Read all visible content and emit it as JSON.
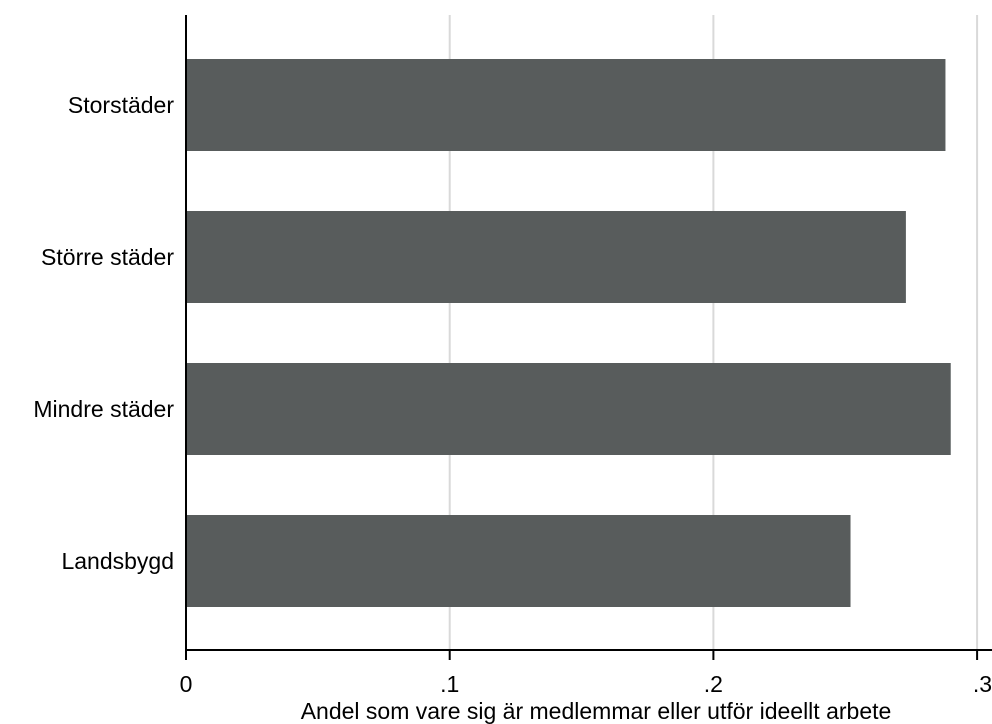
{
  "chart_data": {
    "type": "bar",
    "orientation": "horizontal",
    "categories": [
      "Storstäder",
      "Större städer",
      "Mindre städer",
      "Landsbygd"
    ],
    "values": [
      0.288,
      0.273,
      0.29,
      0.252
    ],
    "xlim": [
      0,
      0.3
    ],
    "xticks": [
      {
        "value": 0,
        "label": "0"
      },
      {
        "value": 0.1,
        "label": ".1"
      },
      {
        "value": 0.2,
        "label": ".2"
      },
      {
        "value": 0.3,
        "label": ".3"
      }
    ],
    "xlabel": "Andel som vare sig är medlemmar eller utför ideellt arbete",
    "ylabel": "",
    "title": "",
    "grid": "vertical",
    "colors": {
      "bar": "#585c5c",
      "grid": "#d9d9d9",
      "axis": "#000000",
      "background": "#ffffff"
    }
  }
}
